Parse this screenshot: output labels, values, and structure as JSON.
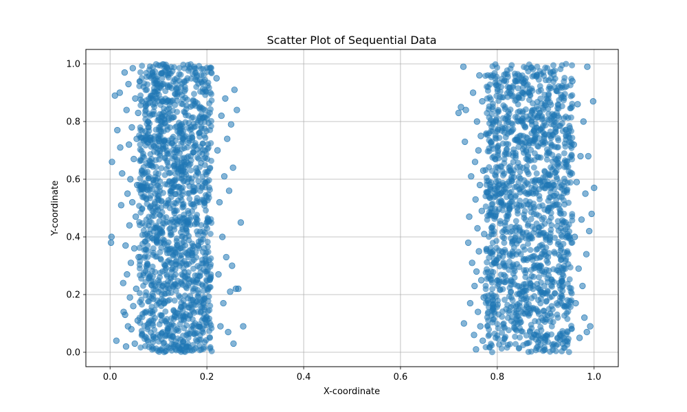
{
  "chart_data": {
    "type": "scatter",
    "title": "Scatter Plot of Sequential Data",
    "xlabel": "X-coordinate",
    "ylabel": "Y-coordinate",
    "xlim": [
      -0.05,
      1.05
    ],
    "ylim": [
      -0.05,
      1.05
    ],
    "x_ticks": [
      0.0,
      0.2,
      0.4,
      0.6,
      0.8,
      1.0
    ],
    "x_tick_labels": [
      "0.0",
      "0.2",
      "0.4",
      "0.6",
      "0.8",
      "1.0"
    ],
    "y_ticks": [
      0.0,
      0.2,
      0.4,
      0.6,
      0.8,
      1.0
    ],
    "y_tick_labels": [
      "0.0",
      "0.2",
      "0.4",
      "0.6",
      "0.8",
      "1.0"
    ],
    "grid": true,
    "marker_color": "#1f77b4",
    "marker_alpha": 0.55,
    "legend": null,
    "series": [
      {
        "points": [
          [
            0.002,
            0.38
          ],
          [
            0.003,
            0.4
          ],
          [
            0.004,
            0.66
          ],
          [
            0.01,
            0.89
          ],
          [
            0.013,
            0.04
          ],
          [
            0.015,
            0.77
          ],
          [
            0.02,
            0.9
          ],
          [
            0.021,
            0.71
          ],
          [
            0.023,
            0.51
          ],
          [
            0.025,
            0.62
          ],
          [
            0.027,
            0.24
          ],
          [
            0.028,
            0.14
          ],
          [
            0.03,
            0.97
          ],
          [
            0.031,
            0.13
          ],
          [
            0.032,
            0.37
          ],
          [
            0.033,
            0.02
          ],
          [
            0.034,
            0.84
          ],
          [
            0.035,
            0.27
          ],
          [
            0.036,
            0.55
          ],
          [
            0.037,
            0.09
          ],
          [
            0.038,
            0.93
          ],
          [
            0.039,
            0.72
          ],
          [
            0.04,
            0.44
          ],
          [
            0.041,
            0.19
          ],
          [
            0.042,
            0.6
          ],
          [
            0.043,
            0.31
          ],
          [
            0.044,
            0.08
          ],
          [
            0.045,
            0.78
          ],
          [
            0.046,
            0.52
          ],
          [
            0.047,
            0.985
          ],
          [
            0.048,
            0.16
          ],
          [
            0.049,
            0.67
          ],
          [
            0.05,
            0.36
          ],
          [
            0.051,
            0.03
          ],
          [
            0.052,
            0.88
          ],
          [
            0.053,
            0.47
          ],
          [
            0.054,
            0.22
          ],
          [
            0.055,
            0.74
          ],
          [
            0.056,
            0.58
          ],
          [
            0.057,
            0.11
          ],
          [
            0.058,
            0.83
          ],
          [
            0.059,
            0.33
          ],
          [
            0.22,
            0.95
          ],
          [
            0.222,
            0.7
          ],
          [
            0.224,
            0.27
          ],
          [
            0.226,
            0.52
          ],
          [
            0.228,
            0.09
          ],
          [
            0.23,
            0.82
          ],
          [
            0.232,
            0.4
          ],
          [
            0.234,
            0.17
          ],
          [
            0.236,
            0.61
          ],
          [
            0.238,
            0.88
          ],
          [
            0.24,
            0.33
          ],
          [
            0.242,
            0.74
          ],
          [
            0.244,
            0.07
          ],
          [
            0.246,
            0.56
          ],
          [
            0.248,
            0.21
          ],
          [
            0.25,
            0.79
          ],
          [
            0.252,
            0.3
          ],
          [
            0.254,
            0.64
          ],
          [
            0.255,
            0.03
          ],
          [
            0.257,
            0.91
          ],
          [
            0.26,
            0.22
          ],
          [
            0.262,
            0.84
          ],
          [
            0.265,
            0.22
          ],
          [
            0.27,
            0.45
          ],
          [
            0.275,
            0.09
          ],
          [
            0.72,
            0.83
          ],
          [
            0.725,
            0.85
          ],
          [
            0.73,
            0.99
          ],
          [
            0.731,
            0.1
          ],
          [
            0.733,
            0.73
          ],
          [
            0.735,
            0.84
          ],
          [
            0.74,
            0.38
          ],
          [
            0.742,
            0.47
          ],
          [
            0.744,
            0.17
          ],
          [
            0.746,
            0.61
          ],
          [
            0.748,
            0.31
          ],
          [
            0.75,
            0.9
          ],
          [
            0.752,
            0.06
          ],
          [
            0.753,
            0.23
          ],
          [
            0.754,
            0.66
          ],
          [
            0.755,
            0.53
          ],
          [
            0.756,
            0.01
          ],
          [
            0.757,
            0.28
          ],
          [
            0.758,
            0.8
          ],
          [
            0.759,
            0.43
          ],
          [
            0.76,
            0.14
          ],
          [
            0.761,
            0.7
          ],
          [
            0.762,
            0.35
          ],
          [
            0.763,
            0.96
          ],
          [
            0.764,
            0.58
          ],
          [
            0.765,
            0.09
          ],
          [
            0.766,
            0.75
          ],
          [
            0.767,
            0.25
          ],
          [
            0.768,
            0.49
          ],
          [
            0.769,
            0.87
          ],
          [
            0.77,
            0.04
          ],
          [
            0.771,
            0.63
          ],
          [
            0.772,
            0.19
          ],
          [
            0.773,
            0.41
          ],
          [
            0.955,
            0.94
          ],
          [
            0.958,
            0.72
          ],
          [
            0.96,
            0.4
          ],
          [
            0.962,
            0.17
          ],
          [
            0.964,
            0.59
          ],
          [
            0.966,
            0.86
          ],
          [
            0.968,
            0.29
          ],
          [
            0.97,
            0.05
          ],
          [
            0.972,
            0.68
          ],
          [
            0.974,
            0.46
          ],
          [
            0.976,
            0.23
          ],
          [
            0.978,
            0.8
          ],
          [
            0.98,
            0.12
          ],
          [
            0.982,
            0.55
          ],
          [
            0.984,
            0.34
          ],
          [
            0.985,
            0.07
          ],
          [
            0.986,
            0.99
          ],
          [
            0.988,
            0.68
          ],
          [
            0.99,
            0.42
          ],
          [
            0.992,
            0.09
          ],
          [
            0.995,
            0.48
          ],
          [
            0.998,
            0.87
          ],
          [
            1.0,
            0.57
          ]
        ],
        "bands": [
          {
            "x_range": [
              0.06,
              0.21
            ],
            "y_range": [
              0.0,
              1.0
            ]
          },
          {
            "x_range": [
              0.775,
              0.955
            ],
            "y_range": [
              0.0,
              1.0
            ]
          }
        ]
      }
    ]
  }
}
